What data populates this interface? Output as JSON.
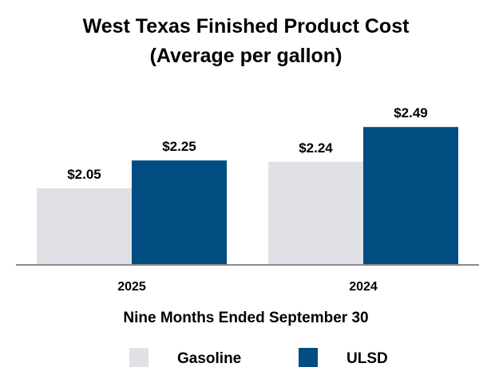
{
  "chart_data": {
    "type": "bar",
    "title_lines": [
      "West Texas Finished Product Cost",
      "(Average per gallon)"
    ],
    "categories": [
      "2025",
      "2024"
    ],
    "series": [
      {
        "name": "Gasoline",
        "values": [
          2.05,
          2.24
        ],
        "labels": [
          "$2.05",
          "$2.24"
        ],
        "color": "#e0e1e6"
      },
      {
        "name": "ULSD",
        "values": [
          2.25,
          2.49
        ],
        "labels": [
          "$2.25",
          "$2.49"
        ],
        "color": "#014c80"
      }
    ],
    "xlabel": "Nine Months Ended September 30",
    "ylabel": "",
    "ylim": [
      1.5,
      2.6
    ],
    "grid": false,
    "legend": "bottom-center"
  },
  "colors": {
    "axis": "#8a8a8a",
    "text": "#000000"
  }
}
